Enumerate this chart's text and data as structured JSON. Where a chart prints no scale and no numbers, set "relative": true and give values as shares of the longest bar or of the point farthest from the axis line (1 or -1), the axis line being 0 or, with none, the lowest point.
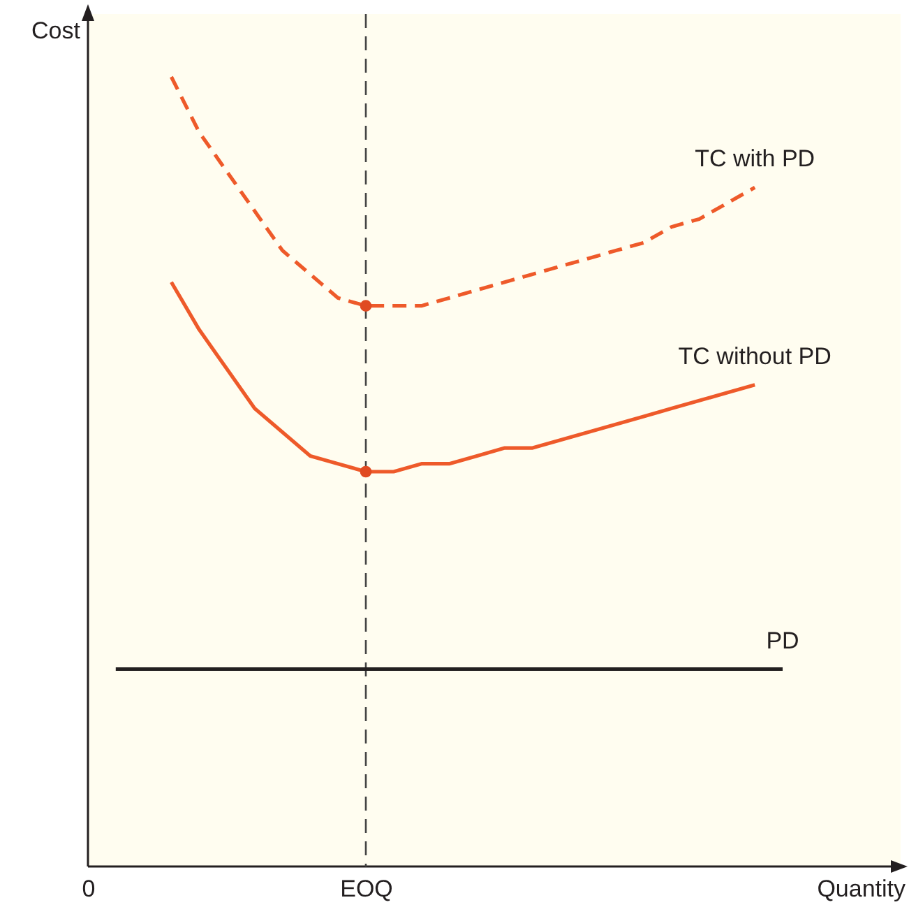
{
  "chart_data": {
    "type": "line",
    "relative": true,
    "xlabel": "Quantity",
    "ylabel": "Cost",
    "categories": [
      "0",
      null,
      null,
      null,
      null,
      null,
      null,
      null,
      null,
      null,
      "EOQ",
      null,
      null,
      null,
      null,
      null,
      null,
      null,
      null,
      null,
      null,
      null,
      null,
      null,
      null,
      null
    ],
    "series": [
      {
        "name": "TC with PD",
        "color": "#ee5a2a",
        "line_style": "dashed",
        "values": [
          null,
          null,
          null,
          1.0,
          0.93,
          0.88,
          0.83,
          0.78,
          0.75,
          0.72,
          0.71,
          0.71,
          0.71,
          0.72,
          0.73,
          0.74,
          0.75,
          0.76,
          0.77,
          0.78,
          0.79,
          0.81,
          0.82,
          0.84,
          0.86,
          null
        ]
      },
      {
        "name": "TC without PD",
        "color": "#ee5a2a",
        "line_style": "solid",
        "values": [
          null,
          null,
          null,
          0.74,
          0.68,
          0.63,
          0.58,
          0.55,
          0.52,
          0.51,
          0.5,
          0.5,
          0.51,
          0.51,
          0.52,
          0.53,
          0.53,
          0.54,
          0.55,
          0.56,
          0.57,
          0.58,
          0.59,
          0.6,
          0.61,
          null
        ]
      },
      {
        "name": "PD",
        "color": "#231f20",
        "line_style": "solid",
        "values": [
          null,
          0.25,
          0.25,
          0.25,
          0.25,
          0.25,
          0.25,
          0.25,
          0.25,
          0.25,
          0.25,
          0.25,
          0.25,
          0.25,
          0.25,
          0.25,
          0.25,
          0.25,
          0.25,
          0.25,
          0.25,
          0.25,
          0.25,
          0.25,
          0.25,
          0.25
        ]
      },
      {
        "type": "scatter",
        "marker": "circle",
        "color": "#e04a22",
        "values": [
          null,
          null,
          null,
          null,
          null,
          null,
          null,
          null,
          null,
          null,
          0.71,
          null,
          null,
          null,
          null,
          null,
          null,
          null,
          null,
          null,
          null,
          null,
          null,
          null,
          null,
          null
        ]
      },
      {
        "type": "scatter",
        "marker": "circle",
        "color": "#e04a22",
        "values": [
          null,
          null,
          null,
          null,
          null,
          null,
          null,
          null,
          null,
          null,
          0.5,
          null,
          null,
          null,
          null,
          null,
          null,
          null,
          null,
          null,
          null,
          null,
          null,
          null,
          null,
          null
        ]
      }
    ],
    "ref_lines": [
      {
        "axis": "x",
        "value": "EOQ",
        "color": "#444444",
        "line_style": "dashed"
      }
    ],
    "grid": false
  }
}
